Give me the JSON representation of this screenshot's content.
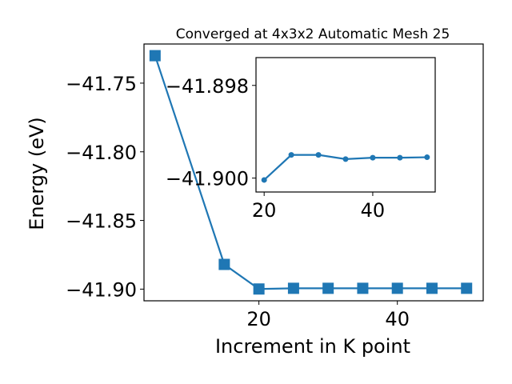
{
  "colors": {
    "series": "#1f77b4",
    "axes": "#000000",
    "background": "#ffffff"
  },
  "chart_data": [
    {
      "type": "line",
      "title": "Converged at 4x3x2 Automatic Mesh 25",
      "xlabel": "Increment in K point",
      "ylabel": "Energy (eV)",
      "marker": "square",
      "xlim": [
        3.4,
        52.4
      ],
      "ylim": [
        -41.9085,
        -41.7215
      ],
      "xticks": [
        20,
        40
      ],
      "xtick_labels": [
        "20",
        "40"
      ],
      "yticks": [
        -41.75,
        -41.8,
        -41.85,
        -41.9
      ],
      "ytick_labels": [
        "−41.75",
        "−41.80",
        "−41.85",
        "−41.90"
      ],
      "grid": false,
      "series": [
        {
          "x": [
            5,
            15,
            20,
            25,
            30,
            35,
            40,
            45,
            50
          ],
          "values": [
            -41.73,
            -41.882,
            -41.8999,
            -41.8994,
            -41.8994,
            -41.8994,
            -41.8994,
            -41.8994,
            -41.8994
          ]
        }
      ]
    },
    {
      "type": "line",
      "title": "",
      "xlabel": "",
      "ylabel": "",
      "marker": "circle",
      "xlim": [
        18.5,
        51.5
      ],
      "ylim": [
        -41.9003,
        -41.8974
      ],
      "xticks": [
        20,
        40
      ],
      "xtick_labels": [
        "20",
        "40"
      ],
      "yticks": [
        -41.9,
        -41.898
      ],
      "ytick_labels": [
        "−41.900",
        "−41.898"
      ],
      "grid": false,
      "series": [
        {
          "x": [
            20,
            25,
            30,
            35,
            40,
            45,
            50
          ],
          "values": [
            -41.90004,
            -41.8995,
            -41.8995,
            -41.89959,
            -41.89956,
            -41.89956,
            -41.89955
          ]
        }
      ]
    }
  ]
}
